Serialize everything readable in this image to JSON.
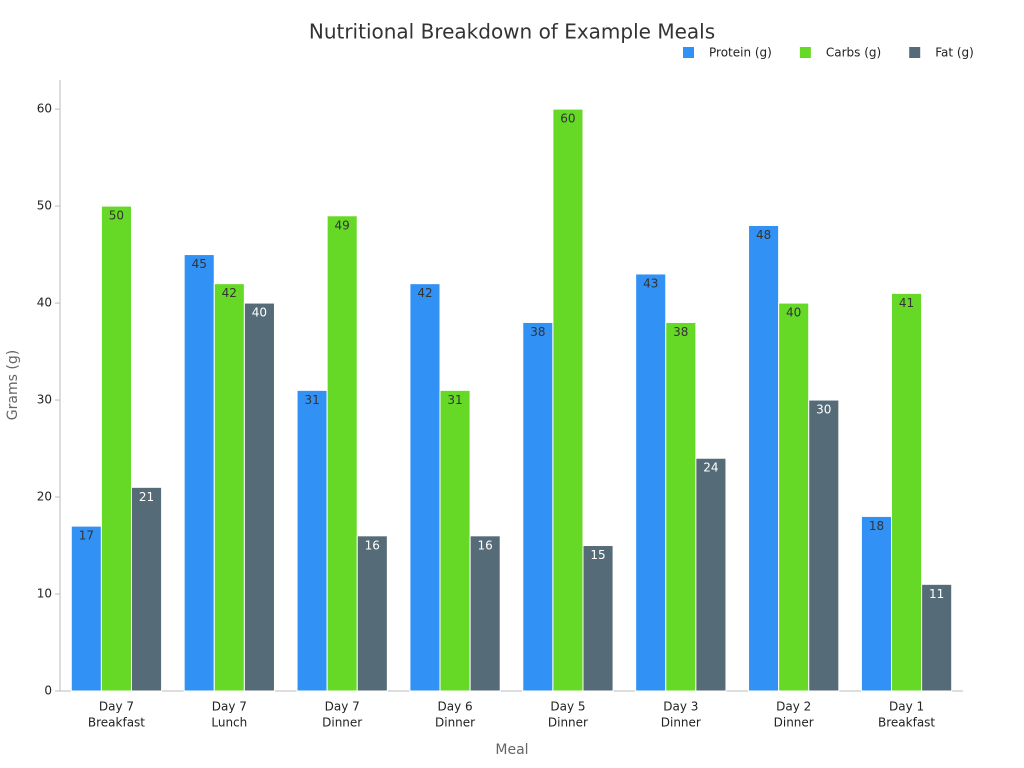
{
  "chart_data": {
    "type": "bar",
    "title": "Nutritional Breakdown of Example Meals",
    "xlabel": "Meal",
    "ylabel": "Grams (g)",
    "categories": [
      [
        "Day 7",
        "Breakfast"
      ],
      [
        "Day 7",
        "Lunch"
      ],
      [
        "Day 7",
        "Dinner"
      ],
      [
        "Day 6",
        "Dinner"
      ],
      [
        "Day 5",
        "Dinner"
      ],
      [
        "Day 3",
        "Dinner"
      ],
      [
        "Day 2",
        "Dinner"
      ],
      [
        "Day 1",
        "Breakfast"
      ]
    ],
    "series": [
      {
        "name": "Protein (g)",
        "color": "#3291f5",
        "values": [
          17,
          45,
          31,
          42,
          38,
          43,
          48,
          18
        ]
      },
      {
        "name": "Carbs (g)",
        "color": "#66d926",
        "values": [
          50,
          42,
          49,
          31,
          60,
          38,
          40,
          41
        ]
      },
      {
        "name": "Fat (g)",
        "color": "#556b77",
        "values": [
          21,
          40,
          16,
          16,
          15,
          24,
          30,
          11
        ]
      }
    ],
    "ylim": [
      0,
      63
    ],
    "yticks": [
      0,
      10,
      20,
      30,
      40,
      50,
      60
    ],
    "grid": false,
    "legend": "top-right"
  }
}
